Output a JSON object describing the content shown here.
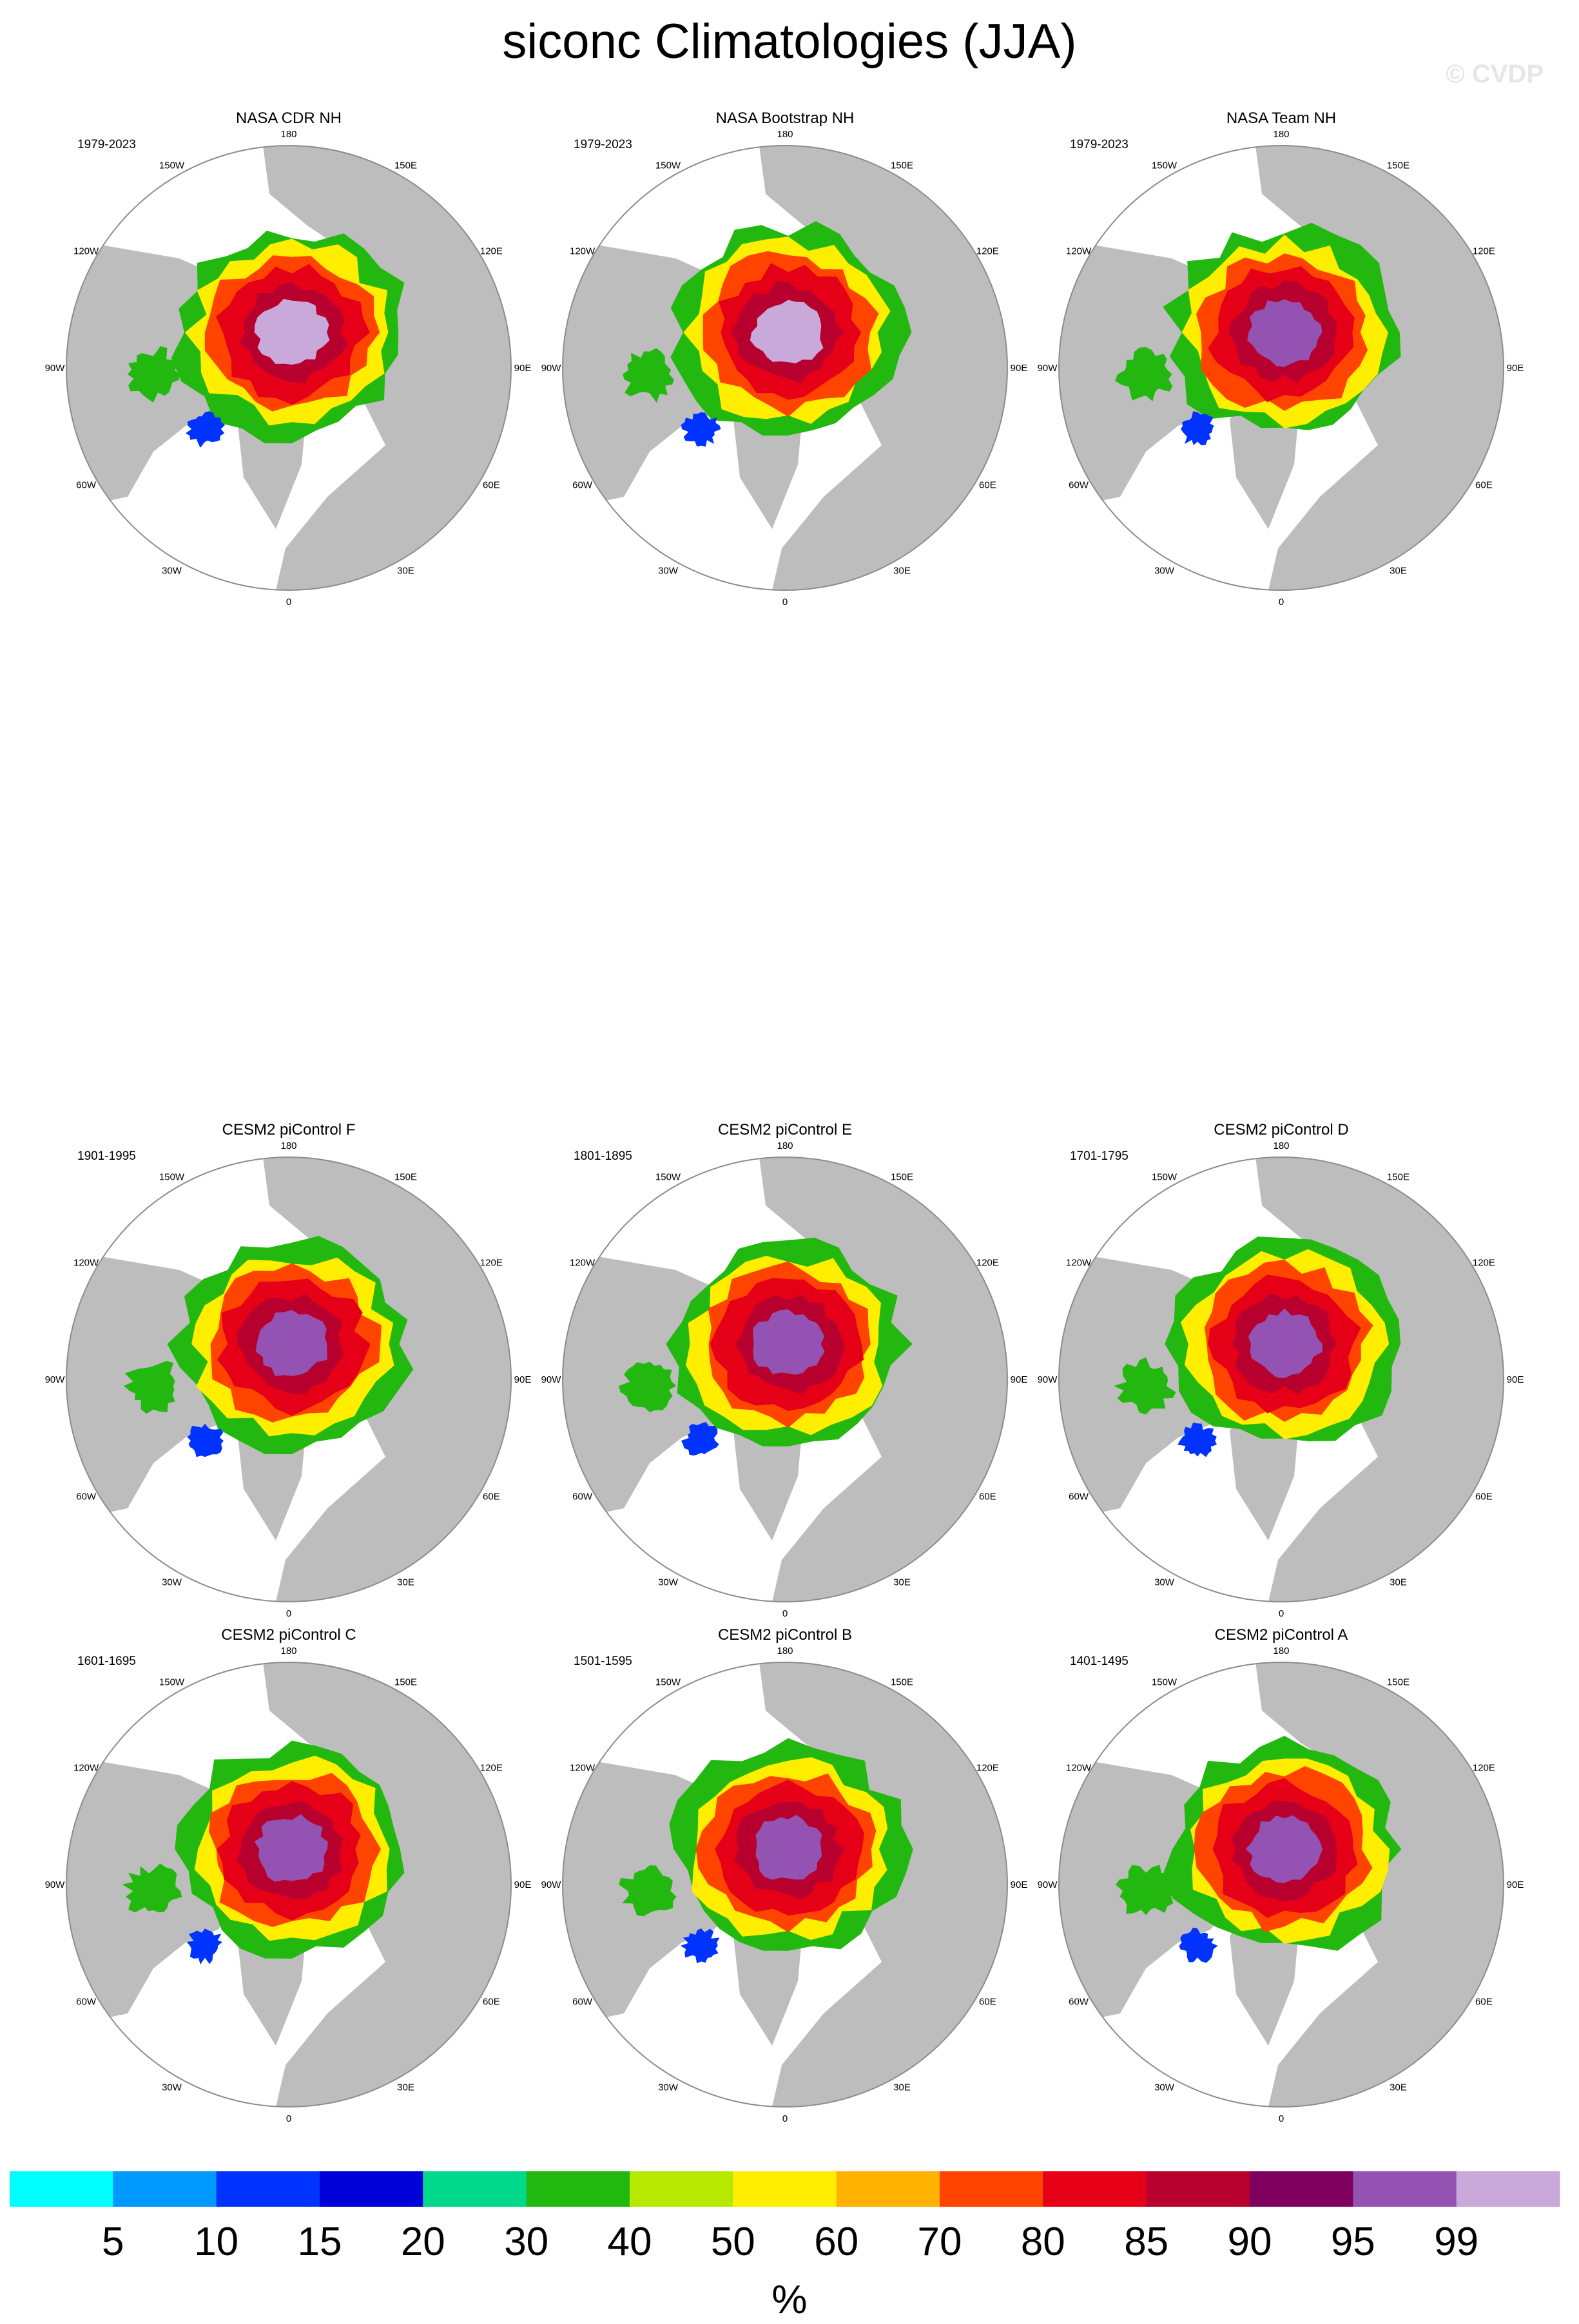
{
  "title": "siconc Climatologies (JJA)",
  "watermark": "© CVDP",
  "colors": {
    "land": "#bdbdbd",
    "ocean": "#ffffff",
    "outline": "#8c8c8c"
  },
  "chart_data": {
    "type": "heatmap",
    "projection": "north-polar-stereographic",
    "longitude_labels": [
      "180",
      "150E",
      "120E",
      "90E",
      "60E",
      "30E",
      "0",
      "30W",
      "60W",
      "90W",
      "120W",
      "150W"
    ],
    "panels": [
      {
        "title": "NASA CDR NH",
        "period": "1979-2023",
        "peak": "99"
      },
      {
        "title": "NASA Bootstrap NH",
        "period": "1979-2023",
        "peak": "99"
      },
      {
        "title": "NASA Team NH",
        "period": "1979-2023",
        "peak": "95"
      },
      {
        "title": "CESM2 piControl F",
        "period": "1901-1995",
        "peak": "95"
      },
      {
        "title": "CESM2 piControl E",
        "period": "1801-1895",
        "peak": "95"
      },
      {
        "title": "CESM2 piControl D",
        "period": "1701-1795",
        "peak": "95"
      },
      {
        "title": "CESM2 piControl C",
        "period": "1601-1695",
        "peak": "95"
      },
      {
        "title": "CESM2 piControl B",
        "period": "1501-1595",
        "peak": "95"
      },
      {
        "title": "CESM2 piControl A",
        "period": "1401-1495",
        "peak": "95"
      }
    ],
    "colorbar": {
      "unit": "%",
      "levels": [
        "5",
        "10",
        "15",
        "20",
        "30",
        "40",
        "50",
        "60",
        "70",
        "80",
        "85",
        "90",
        "95",
        "99"
      ],
      "colors": [
        "#00ffff",
        "#0099ff",
        "#0033ff",
        "#0000d8",
        "#00d98c",
        "#22b80f",
        "#b7e800",
        "#ffee00",
        "#ffb300",
        "#ff4400",
        "#e60017",
        "#b7002d",
        "#800060",
        "#9452b3",
        "#c8a9d9"
      ]
    }
  }
}
